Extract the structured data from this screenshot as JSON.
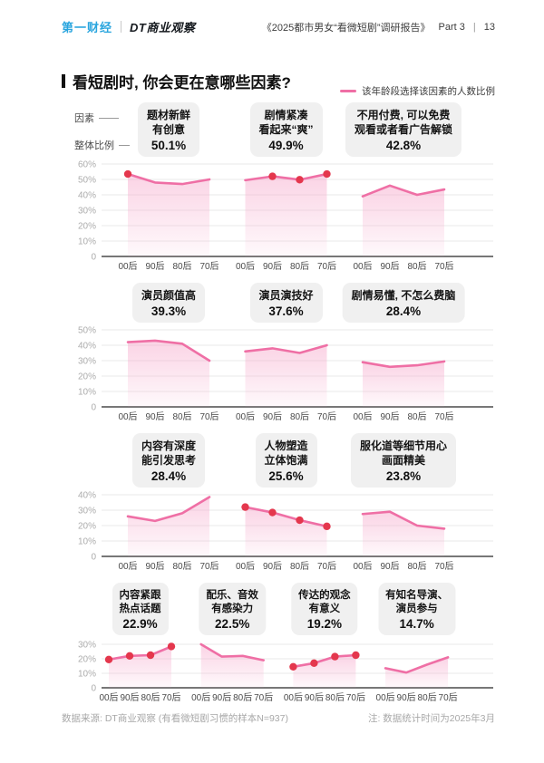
{
  "header": {
    "logo_yicai": "第一财经",
    "logo_dt": "DT商业观察",
    "report_title": "《2025都市男女“看微短剧”调研报告》",
    "part": "Part 3",
    "separator": "|",
    "page": "13"
  },
  "title": "看短剧时, 你会更在意哪些因素?",
  "legend": "该年龄段选择该因素的人数比例",
  "row1_labels": {
    "factor": "因素",
    "overall": "整体比例"
  },
  "footer": {
    "source": "数据来源: DT商业观察 (有看微短剧习惯的样本N=937)",
    "note": "注: 数据统计时间为2025年3月"
  },
  "colors": {
    "line_pink": "#EF6FA5",
    "dot_red": "#E4374D",
    "area_pink": "#F6A8CB",
    "card_bg": "#F0F0F0",
    "brand_blue": "#2AA5DE"
  },
  "chart_data": {
    "type": "line",
    "unit": "%",
    "x_categories": [
      "00后",
      "90后",
      "80后",
      "70后"
    ],
    "legend": "该年龄段选择该因素的人数比例",
    "rows": [
      {
        "ymax": 60,
        "yticks": [
          "60%",
          "50%",
          "40%",
          "30%",
          "20%",
          "10%",
          "0"
        ],
        "charts": [
          {
            "title_lines": [
              "题材新鲜",
              "有创意"
            ],
            "overall": "50.1%",
            "values": [
              53.5,
              48,
              47,
              50
            ],
            "highlight_dots": [
              0
            ]
          },
          {
            "title_lines": [
              "剧情紧凑",
              "看起来“爽”"
            ],
            "overall": "49.9%",
            "values": [
              49.5,
              52,
              49.8,
              53.5
            ],
            "highlight_dots": [
              1,
              2,
              3
            ]
          },
          {
            "title_lines": [
              "不用付费, 可以免费",
              "观看或者看广告解锁"
            ],
            "overall": "42.8%",
            "values": [
              39,
              46,
              40,
              43.5
            ],
            "highlight_dots": []
          }
        ]
      },
      {
        "ymax": 50,
        "yticks": [
          "50%",
          "40%",
          "30%",
          "20%",
          "10%",
          "0"
        ],
        "charts": [
          {
            "title_lines": [
              "演员颜值高"
            ],
            "overall": "39.3%",
            "values": [
              42,
              43,
              41,
              30
            ],
            "highlight_dots": []
          },
          {
            "title_lines": [
              "演员演技好"
            ],
            "overall": "37.6%",
            "values": [
              36,
              38,
              35,
              40
            ],
            "highlight_dots": []
          },
          {
            "title_lines": [
              "剧情易懂, 不怎么费脑"
            ],
            "overall": "28.4%",
            "values": [
              29,
              26,
              27,
              29.5
            ],
            "highlight_dots": []
          }
        ]
      },
      {
        "ymax": 40,
        "yticks": [
          "40%",
          "30%",
          "20%",
          "10%",
          "0"
        ],
        "charts": [
          {
            "title_lines": [
              "内容有深度",
              "能引发思考"
            ],
            "overall": "28.4%",
            "values": [
              26,
              23,
              28,
              38.5
            ],
            "highlight_dots": []
          },
          {
            "title_lines": [
              "人物塑造",
              "立体饱满"
            ],
            "overall": "25.6%",
            "values": [
              32,
              28.5,
              23.5,
              19.5
            ],
            "highlight_dots": [
              0,
              1,
              2,
              3
            ]
          },
          {
            "title_lines": [
              "服化道等细节用心",
              "画面精美"
            ],
            "overall": "23.8%",
            "values": [
              27.5,
              29,
              20,
              18
            ],
            "highlight_dots": []
          }
        ]
      },
      {
        "ymax": 30,
        "yticks": [
          "30%",
          "20%",
          "10%",
          "0"
        ],
        "charts": [
          {
            "title_lines": [
              "内容紧跟",
              "热点话题"
            ],
            "overall": "22.9%",
            "values": [
              19.5,
              22,
              22.5,
              28.5
            ],
            "highlight_dots": [
              0,
              1,
              2,
              3
            ]
          },
          {
            "title_lines": [
              "配乐、音效",
              "有感染力"
            ],
            "overall": "22.5%",
            "values": [
              30,
              21.5,
              22,
              19
            ],
            "highlight_dots": []
          },
          {
            "title_lines": [
              "传达的观念",
              "有意义"
            ],
            "overall": "19.2%",
            "values": [
              14.5,
              17,
              21.5,
              22.5
            ],
            "highlight_dots": [
              0,
              1,
              2,
              3
            ]
          },
          {
            "title_lines": [
              "有知名导演、",
              "演员参与"
            ],
            "overall": "14.7%",
            "values": [
              13.5,
              10.5,
              16,
              21
            ],
            "highlight_dots": []
          }
        ]
      }
    ]
  }
}
